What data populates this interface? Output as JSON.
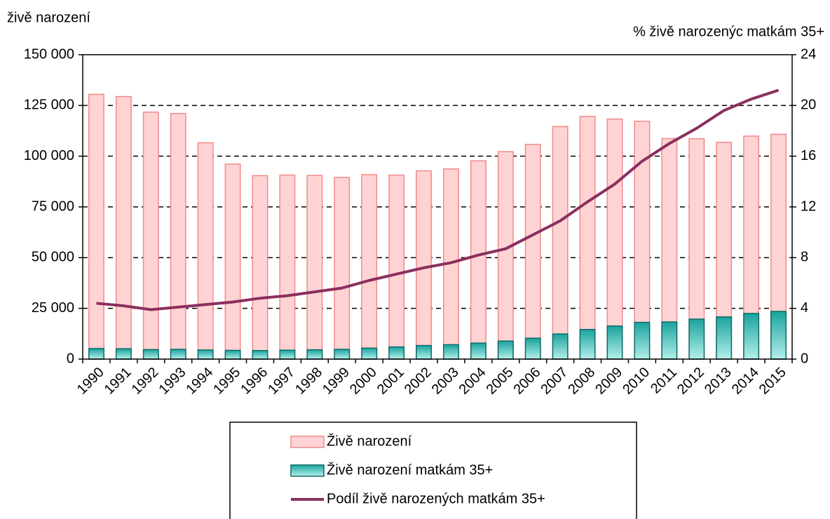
{
  "chart_data": {
    "type": "bar",
    "y_label": "živě narození",
    "y2_label": "% živě narozenýc matkám 35+",
    "categories": [
      "1990",
      "1991",
      "1992",
      "1993",
      "1994",
      "1995",
      "1996",
      "1997",
      "1998",
      "1999",
      "2000",
      "2001",
      "2002",
      "2003",
      "2004",
      "2005",
      "2006",
      "2007",
      "2008",
      "2009",
      "2010",
      "2011",
      "2012",
      "2013",
      "2014",
      "2015"
    ],
    "series": [
      {
        "name": "Živě narození",
        "type": "bar",
        "color": "#ffd3d3",
        "stroke": "#f08a8a",
        "values": [
          130500,
          129400,
          121700,
          121000,
          106600,
          96100,
          90400,
          90700,
          90500,
          89500,
          90900,
          90700,
          92800,
          93700,
          97700,
          102200,
          105800,
          114600,
          119600,
          118300,
          117200,
          108700,
          108600,
          106800,
          109900,
          110800
        ]
      },
      {
        "name": "Živě narození matkám 35+",
        "type": "bar",
        "color": "#2bb5ae",
        "stroke": "#0d6b68",
        "values": [
          5200,
          5100,
          4700,
          4800,
          4500,
          4300,
          4200,
          4400,
          4600,
          4800,
          5400,
          6000,
          6700,
          7100,
          7900,
          8900,
          10300,
          12400,
          14600,
          16300,
          18100,
          18300,
          19700,
          20800,
          22500,
          23500
        ]
      },
      {
        "name": "Podíl živě narozených matkám 35+",
        "type": "line",
        "axis": "y2",
        "color": "#8b2f5e",
        "values": [
          4.4,
          4.2,
          3.9,
          4.1,
          4.3,
          4.5,
          4.8,
          5.0,
          5.3,
          5.6,
          6.2,
          6.7,
          7.2,
          7.6,
          8.2,
          8.7,
          9.8,
          10.9,
          12.4,
          13.8,
          15.6,
          17.0,
          18.2,
          19.6,
          20.5,
          21.2
        ]
      }
    ],
    "ylim": [
      0,
      150000
    ],
    "yticks": [
      0,
      {
        "value": 25000,
        "label": "25 000"
      },
      {
        "value": 50000,
        "label": "50 000"
      },
      {
        "value": 75000,
        "label": "75 000"
      },
      {
        "value": 100000,
        "label": "100 000"
      },
      {
        "value": 125000,
        "label": "125 000"
      },
      {
        "value": 150000,
        "label": "150 000"
      }
    ],
    "y2lim": [
      0,
      24
    ],
    "y2ticks": [
      0,
      4,
      8,
      12,
      16,
      20,
      24
    ],
    "grid": true
  }
}
